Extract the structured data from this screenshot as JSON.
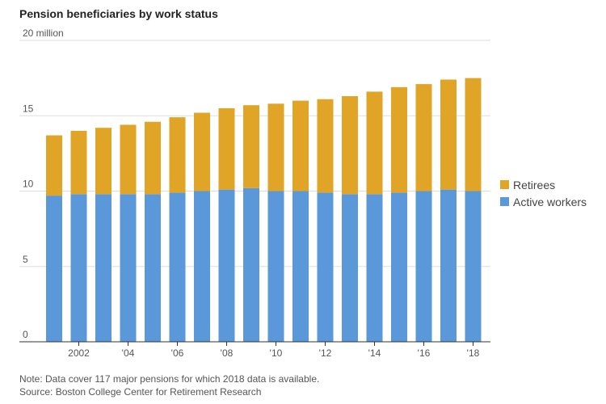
{
  "title": "Pension beneficiaries by work status",
  "footer": {
    "note": "Note: Data cover 117 major pensions for which 2018 data is available.",
    "source": "Source: Boston College Center for Retirement Research"
  },
  "colors": {
    "retirees": "#e0a527",
    "active": "#5b98d9",
    "grid": "#dddddd",
    "axis": "#333333"
  },
  "chart_data": {
    "type": "bar",
    "stacked": true,
    "title": "Pension beneficiaries by work status",
    "categories": [
      "2001",
      "2002",
      "2003",
      "2004",
      "2005",
      "2006",
      "2007",
      "2008",
      "2009",
      "2010",
      "2011",
      "2012",
      "2013",
      "2014",
      "2015",
      "2016",
      "2017",
      "2018"
    ],
    "x_tick_labels": [
      {
        "category": "2002",
        "label": "2002"
      },
      {
        "category": "2004",
        "label": "'04"
      },
      {
        "category": "2006",
        "label": "'06"
      },
      {
        "category": "2008",
        "label": "'08"
      },
      {
        "category": "2010",
        "label": "'10"
      },
      {
        "category": "2012",
        "label": "'12"
      },
      {
        "category": "2014",
        "label": "'14"
      },
      {
        "category": "2016",
        "label": "'16"
      },
      {
        "category": "2018",
        "label": "'18"
      }
    ],
    "y_ticks": [
      {
        "value": 0,
        "label": "0"
      },
      {
        "value": 5,
        "label": "5"
      },
      {
        "value": 10,
        "label": "10"
      },
      {
        "value": 15,
        "label": "15"
      },
      {
        "value": 20,
        "label": "20 million"
      }
    ],
    "ylim": [
      0,
      20
    ],
    "series": [
      {
        "name": "Active workers",
        "values": [
          9.7,
          9.8,
          9.8,
          9.8,
          9.8,
          9.9,
          10.0,
          10.1,
          10.2,
          10.0,
          10.0,
          9.9,
          9.8,
          9.8,
          9.9,
          10.0,
          10.1,
          10.0
        ]
      },
      {
        "name": "Retirees",
        "values": [
          4.0,
          4.2,
          4.4,
          4.6,
          4.8,
          5.0,
          5.2,
          5.4,
          5.5,
          5.8,
          6.0,
          6.2,
          6.5,
          6.8,
          7.0,
          7.1,
          7.3,
          7.5
        ]
      }
    ],
    "legend": [
      {
        "name": "Retirees",
        "color": "#e0a527"
      },
      {
        "name": "Active workers",
        "color": "#5b98d9"
      }
    ],
    "legend_position": "right",
    "grid": true
  }
}
